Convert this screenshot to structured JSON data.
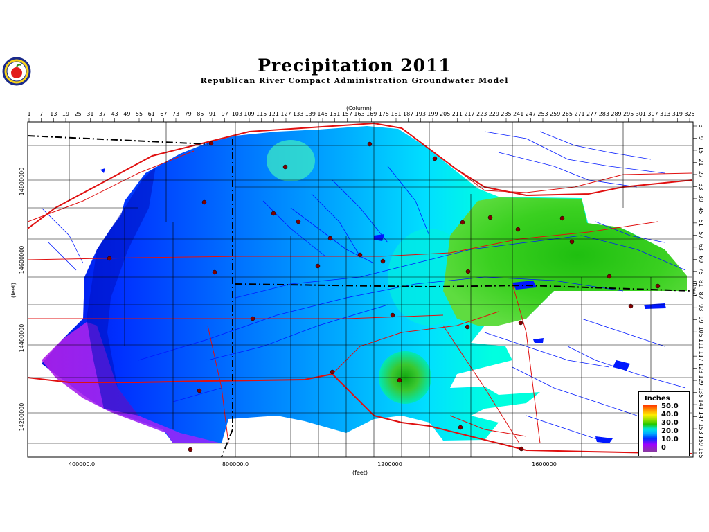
{
  "title": "Precipitation 2011",
  "subtitle": "Republican River Compact Administration Groundwater Model",
  "axes": {
    "column_label": "(Column)",
    "row_label": "(Row)",
    "y_label": "(feet)",
    "x_label": "(feet)",
    "column_ticks": [
      "1",
      "7",
      "13",
      "19",
      "25",
      "31",
      "37",
      "43",
      "49",
      "55",
      "61",
      "67",
      "73",
      "79",
      "85",
      "91",
      "97",
      "103",
      "109",
      "115",
      "121",
      "127",
      "133",
      "139",
      "145",
      "151",
      "157",
      "163",
      "169",
      "175",
      "181",
      "187",
      "193",
      "199",
      "205",
      "211",
      "217",
      "223",
      "229",
      "235",
      "241",
      "247",
      "253",
      "259",
      "265",
      "271",
      "277",
      "283",
      "289",
      "295",
      "301",
      "307",
      "313",
      "319",
      "325"
    ],
    "row_ticks": [
      "3",
      "9",
      "15",
      "21",
      "27",
      "33",
      "39",
      "45",
      "51",
      "57",
      "63",
      "69",
      "75",
      "81",
      "87",
      "93",
      "99",
      "105",
      "111",
      "117",
      "123",
      "129",
      "135",
      "141",
      "147",
      "153",
      "159",
      "165"
    ],
    "y_ticks": [
      "14800000",
      "14600000",
      "14400000",
      "14200000"
    ],
    "x_ticks": [
      "400000.0",
      "800000.0",
      "1200000",
      "1600000"
    ]
  },
  "legend": {
    "title": "Inches",
    "values": [
      "50.0",
      "40.0",
      "30.0",
      "20.0",
      "10.0",
      "0"
    ]
  },
  "colors": {
    "high_green": "#2ac81a",
    "mid_cyan": "#00eee0",
    "blue": "#0050ff",
    "deep_blue": "#0020d0",
    "purple": "#a020f0",
    "river": "#0018ff",
    "road": "#e01010"
  },
  "icons": {
    "logo": "apple-seal-logo"
  }
}
